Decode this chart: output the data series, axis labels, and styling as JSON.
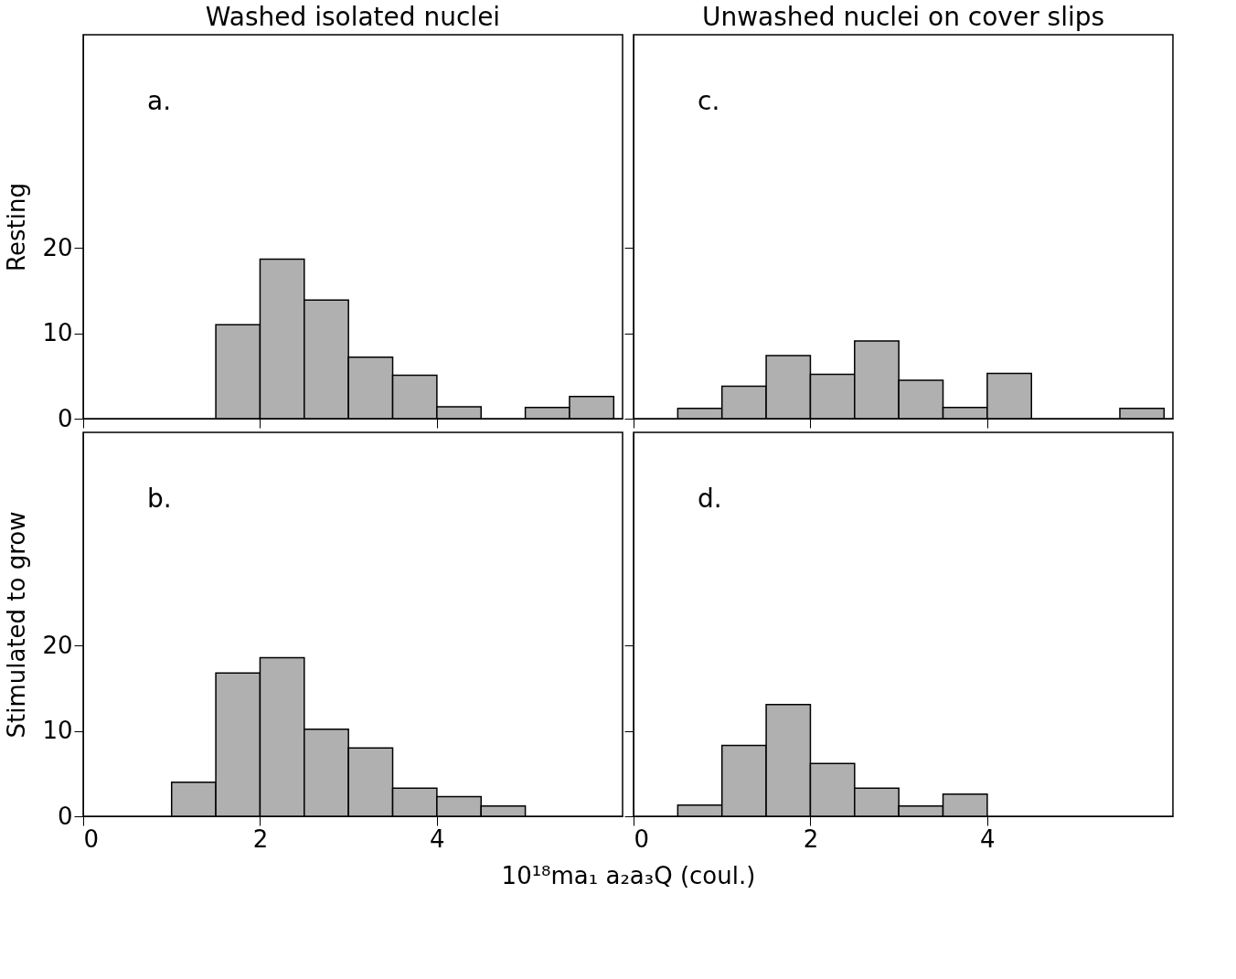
{
  "chart_data": [
    {
      "type": "histogram",
      "title": "Washed isolated nuclei",
      "ylabel": "Resting",
      "annotations": [
        "a."
      ],
      "bins": [
        1.5,
        2.0,
        2.5,
        3.0,
        3.5,
        4.0,
        4.5,
        5.0,
        5.5,
        6.0
      ],
      "values": [
        11,
        18.7,
        13.9,
        7.2,
        5.1,
        1.4,
        0,
        1.3,
        2.6
      ],
      "color": "#b0b0b0",
      "xlim": [
        0,
        6.1
      ],
      "ylim": [
        0,
        45
      ],
      "xticks": [
        0,
        2,
        4
      ],
      "yticks": [
        0,
        10,
        20
      ],
      "tick_labels": "y",
      "grid": false
    },
    {
      "type": "histogram",
      "title": "Unwashed nuclei on cover slips",
      "annotations": [
        "c."
      ],
      "bins": [
        0.5,
        1.0,
        1.5,
        2.0,
        2.5,
        3.0,
        3.5,
        4.0,
        4.5,
        5.0,
        5.5,
        6.0
      ],
      "values": [
        1.2,
        3.8,
        7.4,
        5.2,
        9.1,
        4.5,
        1.3,
        5.3,
        0,
        0,
        1.2
      ],
      "color": "#b0b0b0",
      "xlim": [
        0,
        6.1
      ],
      "ylim": [
        0,
        45
      ],
      "xticks": [
        0,
        2,
        4
      ],
      "yticks": [
        0,
        10,
        20
      ],
      "tick_labels": false,
      "grid": false
    },
    {
      "type": "histogram",
      "ylabel": "Stimulated to grow",
      "xlabel": "10¹⁸ma₁ a₂a₃Q (coul.)",
      "annotations": [
        "b."
      ],
      "bins": [
        1.0,
        1.5,
        2.0,
        2.5,
        3.0,
        3.5,
        4.0,
        4.5,
        5.0
      ],
      "values": [
        4,
        16.8,
        18.6,
        10.2,
        8,
        3.3,
        2.3,
        1.2
      ],
      "color": "#b0b0b0",
      "xlim": [
        0,
        6.1
      ],
      "ylim": [
        0,
        45
      ],
      "xticks": [
        0,
        2,
        4
      ],
      "yticks": [
        0,
        10,
        20
      ],
      "grid": false
    },
    {
      "type": "histogram",
      "annotations": [
        "d."
      ],
      "bins": [
        0.5,
        1.0,
        1.5,
        2.0,
        2.5,
        3.0,
        3.5,
        4.0
      ],
      "values": [
        1.3,
        8.3,
        13.1,
        6.2,
        3.3,
        1.2,
        2.6
      ],
      "color": "#b0b0b0",
      "xlim": [
        0,
        6.1
      ],
      "ylim": [
        0,
        45
      ],
      "xticks": [
        0,
        2,
        4
      ],
      "yticks": [
        0,
        10,
        20
      ],
      "tick_labels": "x",
      "grid": false
    }
  ]
}
